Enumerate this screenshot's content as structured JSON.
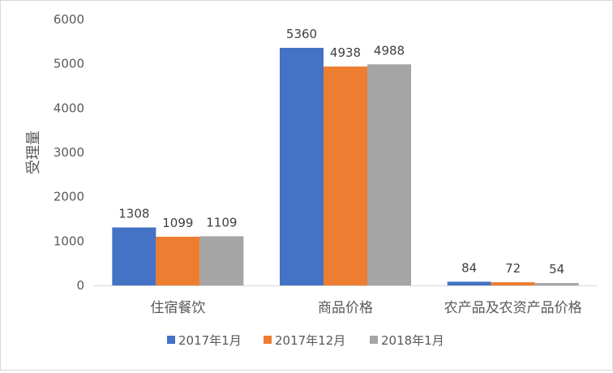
{
  "chart_data": {
    "type": "bar",
    "ylabel": "受理量",
    "xlabel": "",
    "title": "",
    "ylim": [
      0,
      6000
    ],
    "yticks": [
      0,
      1000,
      2000,
      3000,
      4000,
      5000,
      6000
    ],
    "grid": false,
    "legend_position": "bottom",
    "categories": [
      "住宿餐饮",
      "商品价格",
      "农产品及农资产品价格"
    ],
    "series": [
      {
        "name": "2017年1月",
        "color": "#4472c4",
        "values": [
          1308,
          5360,
          84
        ]
      },
      {
        "name": "2017年12月",
        "color": "#ed7d31",
        "values": [
          1099,
          4938,
          72
        ]
      },
      {
        "name": "2018年1月",
        "color": "#a5a5a5",
        "values": [
          1109,
          4988,
          54
        ]
      }
    ]
  }
}
